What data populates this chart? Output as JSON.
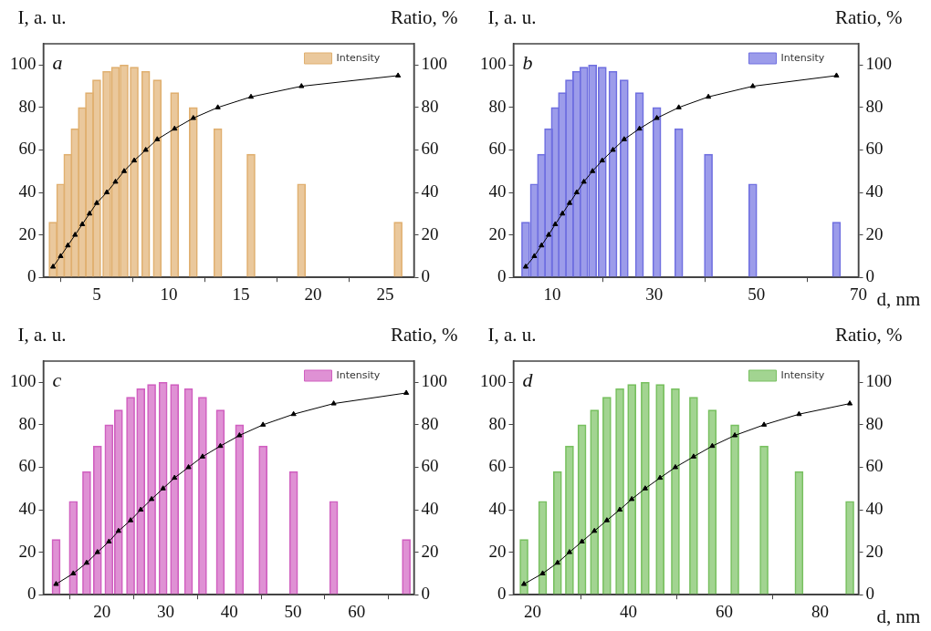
{
  "chart_data": [
    {
      "type": "bar",
      "ylabel": "I, a. u.",
      "y2label": "Ratio, %",
      "annotations": [
        "a"
      ],
      "legend": "top right",
      "marker": "triangle",
      "x": [
        1.97,
        2.5,
        3.0,
        3.5,
        4.0,
        4.5,
        5.0,
        5.7,
        6.3,
        6.9,
        7.6,
        8.4,
        9.2,
        10.4,
        11.7,
        13.4,
        15.7,
        19.2,
        25.9
      ],
      "series": [
        {
          "name": "Intensity",
          "color": "#e0b070",
          "values": [
            26,
            44,
            58,
            70,
            80,
            87,
            93,
            97,
            99,
            100,
            99,
            97,
            93,
            87,
            80,
            70,
            58,
            44,
            26
          ]
        },
        {
          "type": "line",
          "axis": "y2",
          "color": "#000000",
          "values": [
            5,
            10,
            15,
            20,
            25,
            30,
            35,
            40,
            45,
            50,
            55,
            60,
            65,
            70,
            75,
            80,
            85,
            90,
            95
          ]
        }
      ],
      "xlim": [
        1.3,
        27
      ],
      "xticks": [
        5,
        10,
        15,
        20,
        25
      ],
      "ylim": [
        0,
        110
      ],
      "yticks": [
        0,
        20,
        40,
        60,
        80,
        100
      ],
      "y2lim": [
        0,
        110
      ],
      "y2ticks": [
        0,
        20,
        40,
        60,
        80,
        100
      ]
    },
    {
      "type": "bar",
      "xlabel": "d, nm",
      "ylabel": "I, a. u.",
      "y2label": "Ratio, %",
      "annotations": [
        "b"
      ],
      "legend": "top right",
      "marker": "triangle",
      "x": [
        4.8,
        6.5,
        7.9,
        9.3,
        10.6,
        12.0,
        13.4,
        14.8,
        16.2,
        17.9,
        19.8,
        21.9,
        24.1,
        27.1,
        30.5,
        34.8,
        40.6,
        49.3,
        65.7
      ],
      "series": [
        {
          "name": "Intensity",
          "color": "#7070e0",
          "values": [
            26,
            44,
            58,
            70,
            80,
            87,
            93,
            97,
            99,
            100,
            99,
            97,
            93,
            87,
            80,
            70,
            58,
            44,
            26
          ]
        },
        {
          "type": "line",
          "axis": "y2",
          "color": "#000000",
          "values": [
            5,
            10,
            15,
            20,
            25,
            30,
            35,
            40,
            45,
            50,
            55,
            60,
            65,
            70,
            75,
            80,
            85,
            90,
            95
          ]
        }
      ],
      "xlim": [
        2.4,
        70
      ],
      "xticks": [
        10,
        30,
        50,
        70
      ],
      "ylim": [
        0,
        110
      ],
      "yticks": [
        0,
        20,
        40,
        60,
        80,
        100
      ],
      "y2lim": [
        0,
        110
      ],
      "y2ticks": [
        0,
        20,
        40,
        60,
        80,
        100
      ]
    },
    {
      "type": "bar",
      "ylabel": "I, a. u.",
      "y2label": "Ratio, %",
      "annotations": [
        "c"
      ],
      "legend": "top right",
      "marker": "triangle",
      "x": [
        12.8,
        15.5,
        17.6,
        19.3,
        21.1,
        22.6,
        24.5,
        26.1,
        27.8,
        29.6,
        31.4,
        33.6,
        35.8,
        38.6,
        41.6,
        45.3,
        50.1,
        56.4,
        67.8
      ],
      "series": [
        {
          "name": "Intensity",
          "color": "#d060c0",
          "values": [
            26,
            44,
            58,
            70,
            80,
            87,
            93,
            97,
            99,
            100,
            99,
            97,
            93,
            87,
            80,
            70,
            58,
            44,
            26
          ]
        },
        {
          "type": "line",
          "axis": "y2",
          "color": "#000000",
          "values": [
            5,
            10,
            15,
            20,
            25,
            30,
            35,
            40,
            45,
            50,
            55,
            60,
            65,
            70,
            75,
            80,
            85,
            90,
            95
          ]
        }
      ],
      "xlim": [
        10.8,
        69
      ],
      "xticks": [
        20,
        30,
        40,
        50,
        60
      ],
      "ylim": [
        0,
        110
      ],
      "yticks": [
        0,
        20,
        40,
        60,
        80,
        100
      ],
      "y2lim": [
        0,
        110
      ],
      "y2ticks": [
        0,
        20,
        40,
        60,
        80,
        100
      ]
    },
    {
      "type": "bar",
      "xlabel": "d, nm",
      "ylabel": "I, a. u.",
      "y2label": "Ratio, %",
      "annotations": [
        "d"
      ],
      "legend": "top right",
      "marker": "triangle",
      "x": [
        18.2,
        22.1,
        25.2,
        27.7,
        30.3,
        32.9,
        35.5,
        38.2,
        40.7,
        43.5,
        46.6,
        49.8,
        53.6,
        57.5,
        62.2,
        68.3,
        75.6,
        86.2
      ],
      "series": [
        {
          "name": "Intensity",
          "color": "#78c060",
          "values": [
            26,
            44,
            58,
            70,
            80,
            87,
            93,
            97,
            99,
            100,
            99,
            97,
            93,
            87,
            80,
            70,
            58,
            44
          ]
        },
        {
          "type": "line",
          "axis": "y2",
          "color": "#000000",
          "values": [
            5,
            10,
            15,
            20,
            25,
            30,
            35,
            40,
            45,
            50,
            55,
            60,
            65,
            70,
            75,
            80,
            85,
            90
          ]
        }
      ],
      "xlim": [
        16,
        88
      ],
      "xticks": [
        20,
        40,
        60,
        80
      ],
      "ylim": [
        0,
        110
      ],
      "yticks": [
        0,
        20,
        40,
        60,
        80,
        100
      ],
      "y2lim": [
        0,
        110
      ],
      "y2ticks": [
        0,
        20,
        40,
        60,
        80,
        100
      ]
    }
  ]
}
